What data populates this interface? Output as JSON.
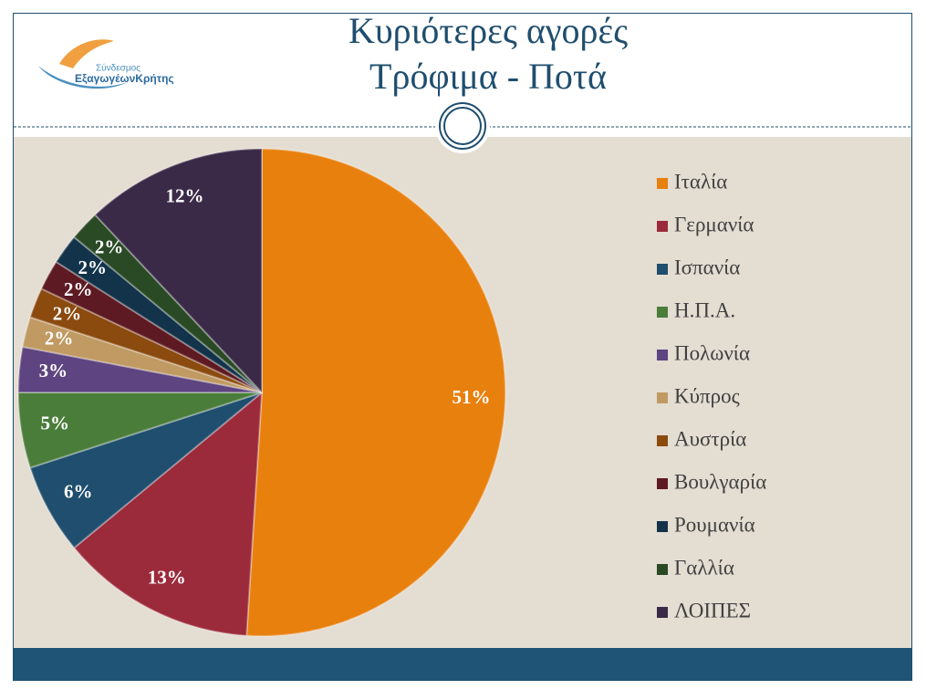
{
  "logo": {
    "line1": "Σύνδεσμος",
    "line2": "ΕξαγωγέωνΚρήτης"
  },
  "chart_data": {
    "type": "pie",
    "title": "Κυριότερες αγορές",
    "subtitle": "Τρόφιμα - Ποτά",
    "categories": [
      "Ιταλία",
      "Γερμανία",
      "Ισπανία",
      "Η.Π.Α.",
      "Πολωνία",
      "Κύπρος",
      "Αυστρία",
      "Βουλγαρία",
      "Ρουμανία",
      "Γαλλία",
      "ΛΟΙΠΕΣ"
    ],
    "values": [
      51,
      13,
      6,
      5,
      3,
      2,
      2,
      2,
      2,
      2,
      12
    ],
    "value_labels": [
      "51%",
      "13%",
      "6%",
      "5%",
      "3%",
      "2%",
      "2%",
      "2%",
      "2%",
      "2%",
      "12%"
    ],
    "colors": [
      "#e8800e",
      "#9b2a3a",
      "#1f4e6e",
      "#4a7d3a",
      "#5e4480",
      "#c09a62",
      "#8b4a0e",
      "#5e1a22",
      "#12334a",
      "#2a4a25",
      "#3a2a48"
    ],
    "legend": "right"
  }
}
